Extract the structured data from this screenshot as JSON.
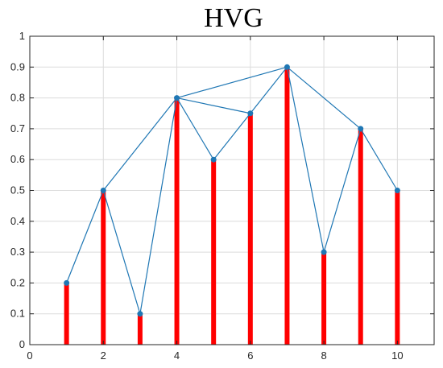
{
  "chart_data": {
    "type": "stem-graph",
    "title": "HVG",
    "xlabel": "",
    "ylabel": "",
    "xlim": [
      0,
      11
    ],
    "ylim": [
      0,
      1
    ],
    "x_ticks": [
      0,
      2,
      4,
      6,
      8,
      10
    ],
    "y_ticks": [
      0,
      0.1,
      0.2,
      0.3,
      0.4,
      0.5,
      0.6,
      0.7,
      0.8,
      0.9,
      1
    ],
    "grid": true,
    "x": [
      1,
      2,
      3,
      4,
      5,
      6,
      7,
      8,
      9,
      10
    ],
    "values": [
      0.2,
      0.5,
      0.1,
      0.8,
      0.6,
      0.75,
      0.9,
      0.3,
      0.7,
      0.5
    ],
    "edges": [
      [
        1,
        2
      ],
      [
        2,
        3
      ],
      [
        2,
        4
      ],
      [
        3,
        4
      ],
      [
        4,
        5
      ],
      [
        4,
        6
      ],
      [
        4,
        7
      ],
      [
        5,
        6
      ],
      [
        6,
        7
      ],
      [
        7,
        8
      ],
      [
        7,
        9
      ],
      [
        8,
        9
      ],
      [
        9,
        10
      ]
    ],
    "stem_color": "#ff0000",
    "edge_color": "#1f77b4",
    "marker_color": "#1f77b4"
  }
}
